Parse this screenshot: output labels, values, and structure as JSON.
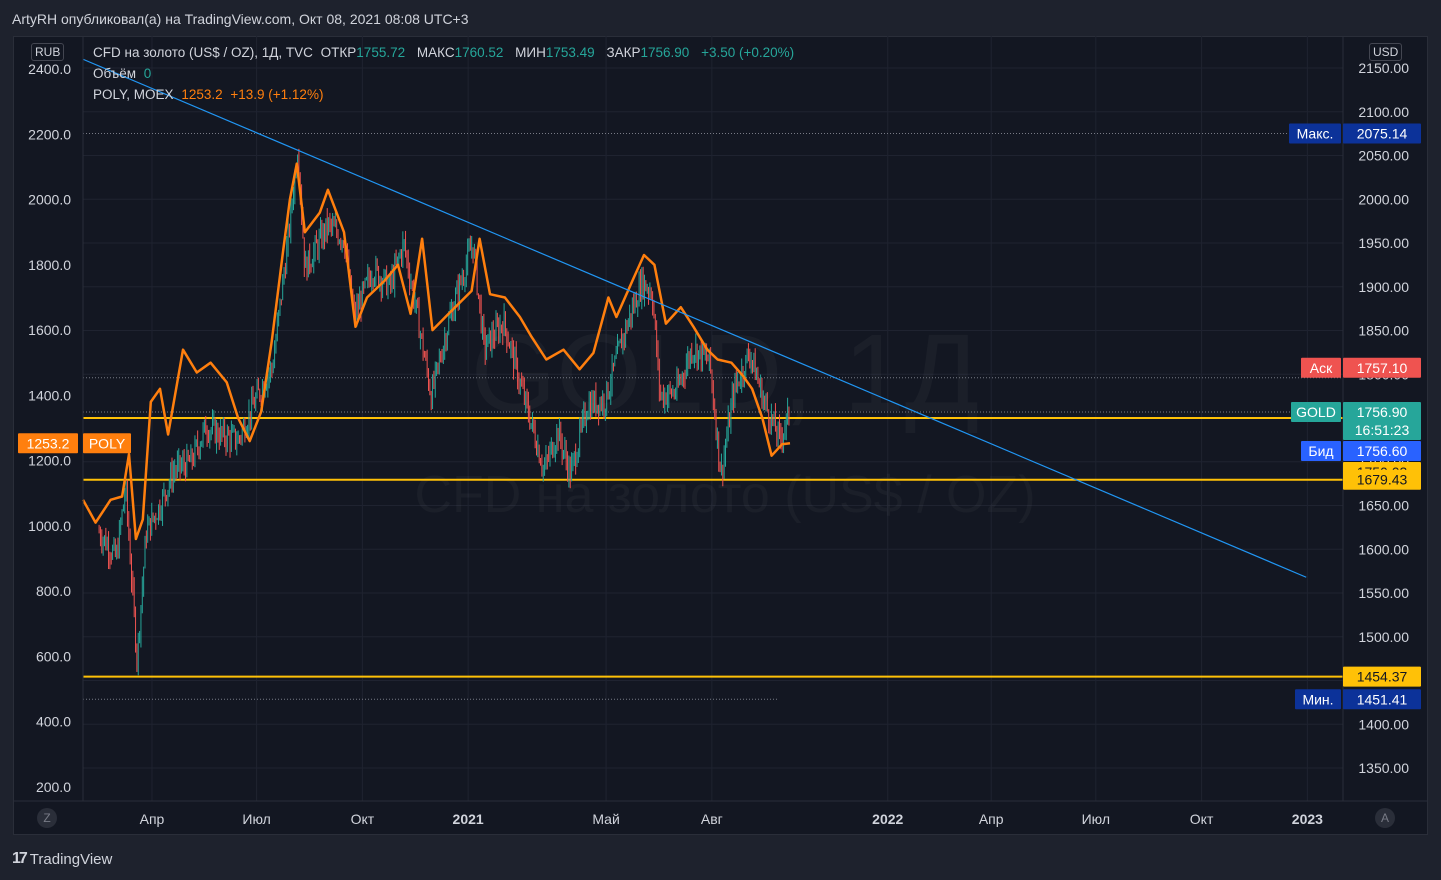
{
  "header": {
    "text": "ArtyRH опубликовал(а) на TradingView.com, Окт 08, 2021 08:08 UTC+3"
  },
  "footer": {
    "brand": "TradingView",
    "logo_icon": "tradingview-logo-icon"
  },
  "legend": {
    "main_title": "CFD на золото (US$ / OZ), 1Д, TVC",
    "open_label": "ОТКР",
    "open_value": "1755.72",
    "high_label": "МАКС",
    "high_value": "1760.52",
    "low_label": "МИН",
    "low_value": "1753.49",
    "close_label": "ЗАКР",
    "close_value": "1756.90",
    "change": "+3.50 (+0.20%)",
    "volume_label": "Объём",
    "volume_value": "0",
    "poly_label": "POLY, MOEX",
    "poly_value": "1253.2",
    "poly_change": "+13.9 (+1.12%)"
  },
  "watermark": {
    "symbol": "GOLD, 1Д",
    "description": "CFD на золото (US$ / OZ)"
  },
  "left_axis": {
    "unit": "RUB",
    "ticks": [
      "2400.0",
      "2200.0",
      "2000.0",
      "1800.0",
      "1600.0",
      "1400.0",
      "1200.0",
      "1000.0",
      "800.0",
      "600.0",
      "400.0",
      "200.0"
    ]
  },
  "right_axis": {
    "unit": "USD",
    "ticks": [
      "2150.00",
      "2100.00",
      "2050.00",
      "2000.00",
      "1950.00",
      "1900.00",
      "1850.00",
      "1800.00",
      "1750.00",
      "1700.00",
      "1650.00",
      "1600.00",
      "1550.00",
      "1500.00",
      "1450.00",
      "1400.00",
      "1350.00"
    ]
  },
  "x_axis": {
    "ticks": [
      "Апр",
      "Июл",
      "Окт",
      "2021",
      "Май",
      "Авг",
      "2022",
      "Апр",
      "Июл",
      "Окт",
      "2023"
    ],
    "bold": [
      "2021",
      "2022",
      "2023"
    ]
  },
  "price_labels": {
    "max_label": "Макс.",
    "max_value": "2075.14",
    "ask_label": "Аск",
    "ask_value": "1757.10",
    "gold_label": "GOLD",
    "gold_value": "1756.90",
    "gold_timer": "16:51:23",
    "bid_label": "Бид",
    "bid_value": "1756.60",
    "level1": "1750.03",
    "level2": "1679.43",
    "level3": "1454.37",
    "min_label": "Мин.",
    "min_value": "1451.41",
    "poly_value": "1253.2",
    "poly_label": "POLY"
  },
  "corner_buttons": {
    "left": "Z",
    "right": "A"
  },
  "colors": {
    "background": "#131722",
    "candle_up": "#26a69a",
    "candle_down": "#ef5350",
    "poly_line": "#ff7f0e",
    "trend_line": "#2196f3",
    "horizontal_level": "#ffc107",
    "ask": "#ef5350",
    "bid": "#2962ff",
    "gold": "#26a69a",
    "maxmin": "#0c3299"
  },
  "chart_data": {
    "type": "line",
    "title": "CFD на золото (US$ / OZ), 1Д, TVC",
    "xlabel": "",
    "ylabel": "",
    "x_range": [
      "2020-02",
      "2023-01"
    ],
    "y_left_lim": [
      200,
      2400
    ],
    "y_right_lim": [
      1350,
      2150
    ],
    "grid": true,
    "series": [
      {
        "name": "GOLD",
        "axis": "right",
        "style": "candles",
        "points": [
          [
            "2020-02-15",
            1620
          ],
          [
            "2020-03-01",
            1590
          ],
          [
            "2020-03-09",
            1670
          ],
          [
            "2020-03-19",
            1475
          ],
          [
            "2020-03-27",
            1620
          ],
          [
            "2020-04-08",
            1650
          ],
          [
            "2020-04-20",
            1690
          ],
          [
            "2020-05-05",
            1700
          ],
          [
            "2020-05-18",
            1740
          ],
          [
            "2020-06-01",
            1730
          ],
          [
            "2020-06-15",
            1725
          ],
          [
            "2020-06-30",
            1770
          ],
          [
            "2020-07-15",
            1810
          ],
          [
            "2020-07-28",
            1950
          ],
          [
            "2020-08-06",
            2060
          ],
          [
            "2020-08-12",
            1920
          ],
          [
            "2020-08-20",
            1940
          ],
          [
            "2020-09-01",
            1970
          ],
          [
            "2020-09-15",
            1955
          ],
          [
            "2020-09-24",
            1865
          ],
          [
            "2020-10-10",
            1920
          ],
          [
            "2020-10-25",
            1900
          ],
          [
            "2020-11-06",
            1950
          ],
          [
            "2020-11-16",
            1880
          ],
          [
            "2020-11-30",
            1775
          ],
          [
            "2020-12-15",
            1860
          ],
          [
            "2021-01-05",
            1950
          ],
          [
            "2021-01-15",
            1830
          ],
          [
            "2021-02-01",
            1860
          ],
          [
            "2021-02-15",
            1790
          ],
          [
            "2021-03-01",
            1725
          ],
          [
            "2021-03-08",
            1690
          ],
          [
            "2021-03-20",
            1735
          ],
          [
            "2021-03-31",
            1685
          ],
          [
            "2021-04-15",
            1765
          ],
          [
            "2021-04-30",
            1770
          ],
          [
            "2021-05-15",
            1840
          ],
          [
            "2021-06-01",
            1905
          ],
          [
            "2021-06-10",
            1895
          ],
          [
            "2021-06-17",
            1775
          ],
          [
            "2021-07-01",
            1780
          ],
          [
            "2021-07-15",
            1830
          ],
          [
            "2021-07-30",
            1815
          ],
          [
            "2021-08-09",
            1685
          ],
          [
            "2021-08-20",
            1780
          ],
          [
            "2021-09-03",
            1825
          ],
          [
            "2021-09-15",
            1770
          ],
          [
            "2021-09-29",
            1725
          ],
          [
            "2021-10-08",
            1757
          ]
        ]
      },
      {
        "name": "POLY, MOEX",
        "axis": "left",
        "style": "line",
        "points": [
          [
            "2020-02-01",
            1080
          ],
          [
            "2020-02-12",
            1010
          ],
          [
            "2020-02-25",
            1080
          ],
          [
            "2020-03-06",
            1090
          ],
          [
            "2020-03-12",
            1220
          ],
          [
            "2020-03-18",
            960
          ],
          [
            "2020-03-24",
            1020
          ],
          [
            "2020-03-31",
            1380
          ],
          [
            "2020-04-08",
            1420
          ],
          [
            "2020-04-15",
            1280
          ],
          [
            "2020-04-28",
            1540
          ],
          [
            "2020-05-10",
            1470
          ],
          [
            "2020-05-22",
            1500
          ],
          [
            "2020-06-05",
            1440
          ],
          [
            "2020-06-15",
            1330
          ],
          [
            "2020-06-25",
            1260
          ],
          [
            "2020-07-05",
            1350
          ],
          [
            "2020-07-14",
            1560
          ],
          [
            "2020-07-24",
            1840
          ],
          [
            "2020-07-30",
            2000
          ],
          [
            "2020-08-05",
            2110
          ],
          [
            "2020-08-12",
            1900
          ],
          [
            "2020-08-25",
            1960
          ],
          [
            "2020-09-01",
            2030
          ],
          [
            "2020-09-15",
            1900
          ],
          [
            "2020-09-25",
            1610
          ],
          [
            "2020-10-05",
            1700
          ],
          [
            "2020-10-20",
            1750
          ],
          [
            "2020-11-01",
            1800
          ],
          [
            "2020-11-12",
            1650
          ],
          [
            "2020-11-22",
            1880
          ],
          [
            "2020-12-01",
            1600
          ],
          [
            "2020-12-15",
            1650
          ],
          [
            "2021-01-04",
            1720
          ],
          [
            "2021-01-11",
            1880
          ],
          [
            "2021-01-20",
            1710
          ],
          [
            "2021-02-02",
            1700
          ],
          [
            "2021-02-15",
            1640
          ],
          [
            "2021-02-25",
            1580
          ],
          [
            "2021-03-10",
            1510
          ],
          [
            "2021-03-25",
            1540
          ],
          [
            "2021-04-08",
            1480
          ],
          [
            "2021-04-20",
            1530
          ],
          [
            "2021-05-03",
            1700
          ],
          [
            "2021-05-10",
            1640
          ],
          [
            "2021-05-25",
            1760
          ],
          [
            "2021-06-03",
            1830
          ],
          [
            "2021-06-12",
            1800
          ],
          [
            "2021-06-22",
            1620
          ],
          [
            "2021-07-05",
            1670
          ],
          [
            "2021-07-16",
            1610
          ],
          [
            "2021-07-28",
            1540
          ],
          [
            "2021-08-06",
            1510
          ],
          [
            "2021-08-18",
            1500
          ],
          [
            "2021-08-28",
            1460
          ],
          [
            "2021-09-05",
            1420
          ],
          [
            "2021-09-14",
            1330
          ],
          [
            "2021-09-22",
            1215
          ],
          [
            "2021-10-01",
            1250
          ],
          [
            "2021-10-08",
            1253.2
          ]
        ]
      },
      {
        "name": "trend",
        "axis": "right",
        "style": "trendline",
        "points": [
          [
            "2020-02-01",
            2160
          ],
          [
            "2022-12-31",
            1568
          ]
        ]
      }
    ],
    "horizontal_levels": [
      1750.03,
      1679.43,
      1454.37
    ],
    "max_marker": 2075.14,
    "min_marker": 1451.41,
    "current_price": 1756.9
  }
}
